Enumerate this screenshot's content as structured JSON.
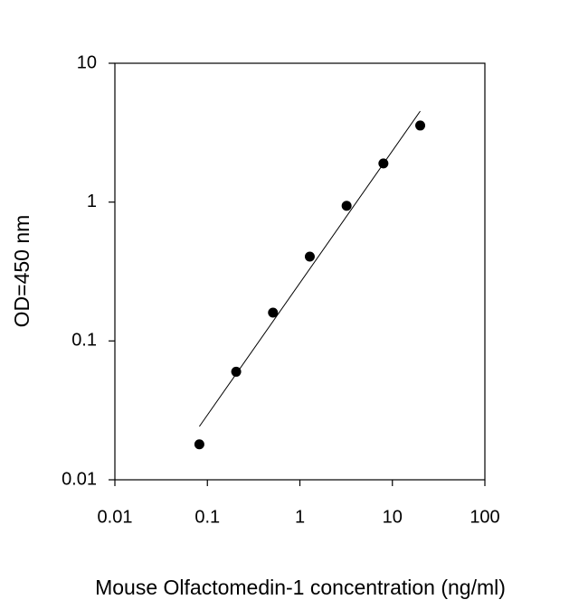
{
  "chart_data": {
    "type": "scatter",
    "x_label": "Mouse Olfactomedin-1 concentration (ng/ml)",
    "y_label": "OD=450 nm",
    "x": [
      0.08192,
      0.2048,
      0.512,
      1.28,
      3.2,
      8,
      20
    ],
    "values": [
      0.018,
      0.06,
      0.16,
      0.405,
      0.94,
      1.9,
      3.56
    ],
    "color": "#000000",
    "fit": {
      "x": [
        0.08192,
        20
      ],
      "values": [
        0.0242,
        4.52
      ],
      "color": "#000000"
    },
    "x_scale": "log",
    "y_scale": "log",
    "xlim": [
      0.01,
      100
    ],
    "ylim": [
      0.01,
      10
    ],
    "xticks": [
      0.01,
      0.1,
      1,
      10,
      100
    ],
    "yticks": [
      0.01,
      0.1,
      1,
      10
    ],
    "grid": false
  }
}
